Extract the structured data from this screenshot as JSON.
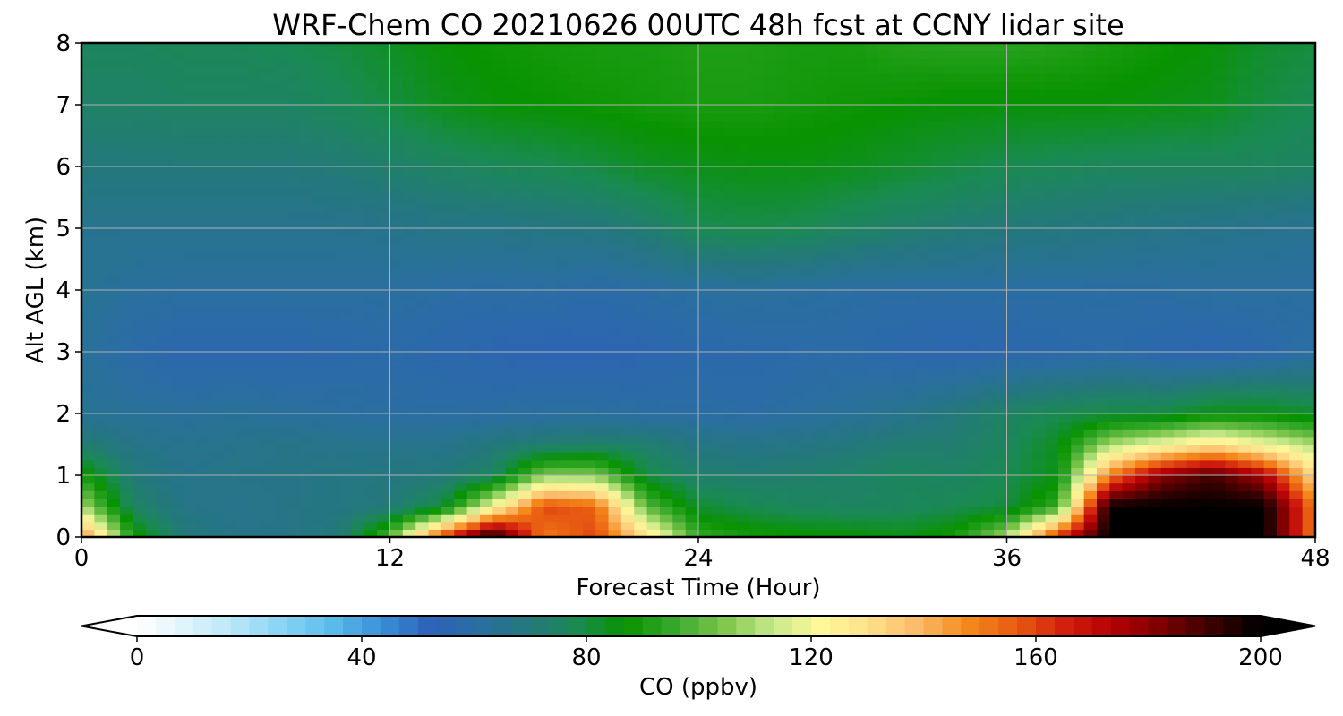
{
  "chart_data": {
    "type": "heatmap",
    "title": "WRF-Chem CO  20210626 00UTC 48h fcst at CCNY lidar site",
    "xlabel": "Forecast Time (Hour)",
    "ylabel": "Alt AGL (km)",
    "xlim": [
      0,
      48
    ],
    "ylim": [
      0,
      8
    ],
    "xticks": [
      0,
      12,
      24,
      36,
      48
    ],
    "yticks": [
      0,
      1,
      2,
      3,
      4,
      5,
      6,
      7,
      8
    ],
    "grid": true,
    "colorbar": {
      "label": "CO  (ppbv)",
      "range": [
        0,
        200
      ],
      "ticks": [
        0,
        40,
        80,
        120,
        160,
        200
      ],
      "extend": "both",
      "colors": [
        "#ffffff",
        "#dff3fb",
        "#b7e6f8",
        "#86d3f4",
        "#5bbbea",
        "#3a8fd6",
        "#2d62b8",
        "#2a6fa0",
        "#24787c",
        "#1a8a52",
        "#089300",
        "#38a92e",
        "#7cc54a",
        "#c8e98c",
        "#fff79a",
        "#fde08a",
        "#fbb968",
        "#f58a1a",
        "#e85a12",
        "#d21e0e",
        "#b20004",
        "#7a0000",
        "#3a0000",
        "#000000"
      ]
    },
    "x_hours": [
      0,
      2,
      4,
      6,
      8,
      10,
      12,
      14,
      16,
      18,
      20,
      22,
      24,
      26,
      28,
      30,
      32,
      34,
      36,
      38,
      40,
      42,
      44,
      46,
      48
    ],
    "z_levels_km": [
      0,
      0.5,
      1,
      1.5,
      2,
      3,
      4,
      5,
      6,
      7,
      8
    ],
    "values_ppbv": [
      [
        150,
        90,
        70,
        67,
        67,
        70,
        100,
        160,
        200,
        150,
        160,
        130,
        95,
        90,
        88,
        87,
        85,
        90,
        110,
        165,
        200,
        200,
        200,
        200,
        150
      ],
      [
        110,
        75,
        67,
        66,
        67,
        68,
        70,
        80,
        120,
        160,
        155,
        100,
        82,
        78,
        76,
        75,
        76,
        78,
        80,
        95,
        200,
        200,
        200,
        200,
        150
      ],
      [
        90,
        70,
        66,
        67,
        67,
        68,
        69,
        70,
        75,
        105,
        105,
        80,
        73,
        72,
        73,
        74,
        76,
        75,
        78,
        85,
        150,
        180,
        190,
        175,
        130
      ],
      [
        72,
        67,
        65,
        66,
        67,
        66,
        66,
        66,
        70,
        72,
        74,
        73,
        68,
        67,
        68,
        70,
        72,
        72,
        76,
        84,
        110,
        120,
        130,
        120,
        110
      ],
      [
        64,
        63,
        62,
        63,
        62,
        61,
        60,
        60,
        60,
        61,
        61,
        60,
        60,
        59,
        61,
        63,
        66,
        70,
        75,
        78,
        80,
        80,
        85,
        85,
        82
      ],
      [
        63,
        58,
        56,
        56,
        56,
        57,
        58,
        56,
        55,
        54,
        54,
        55,
        57,
        57,
        58,
        58,
        56,
        55,
        56,
        57,
        58,
        56,
        55,
        57,
        60
      ],
      [
        64,
        62,
        61,
        61,
        61,
        61,
        61,
        60,
        59,
        60,
        58,
        60,
        61,
        62,
        61,
        60,
        60,
        60,
        60,
        60,
        60,
        60,
        61,
        61,
        61
      ],
      [
        65,
        65,
        65,
        65,
        65,
        65,
        66,
        67,
        67,
        68,
        69,
        72,
        78,
        79,
        78,
        75,
        73,
        71,
        70,
        69,
        68,
        67,
        66,
        65,
        64
      ],
      [
        70,
        70,
        70,
        70,
        70,
        71,
        73,
        75,
        77,
        78,
        80,
        83,
        84,
        85,
        85,
        84,
        82,
        80,
        78,
        77,
        76,
        76,
        76,
        76,
        75
      ],
      [
        74,
        74,
        75,
        75,
        75,
        77,
        80,
        84,
        86,
        87,
        88,
        89,
        90,
        90,
        89,
        88,
        87,
        86,
        86,
        86,
        86,
        85,
        84,
        80,
        78
      ],
      [
        76,
        76,
        77,
        77,
        78,
        80,
        83,
        86,
        88,
        89,
        90,
        90,
        91,
        91,
        90,
        90,
        92,
        93,
        93,
        92,
        90,
        88,
        86,
        82,
        80
      ]
    ]
  }
}
